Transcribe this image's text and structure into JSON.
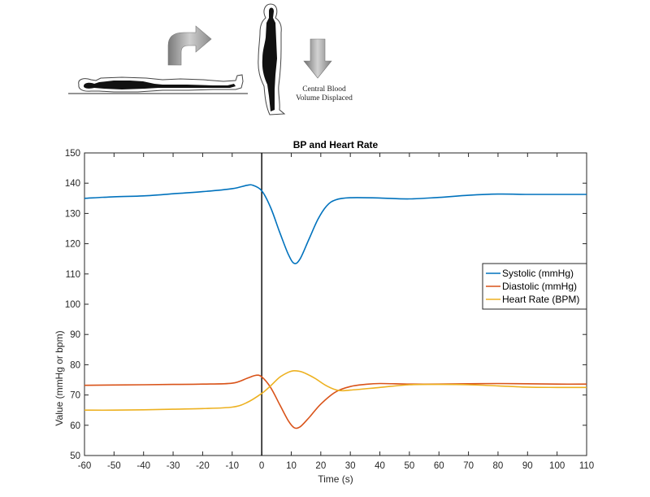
{
  "illustration": {
    "caption_line1": "Central Blood",
    "caption_line2": "Volume Displaced",
    "icons": [
      "person-lying-supine-icon",
      "curved-arrow-up-right-icon",
      "person-standing-icon",
      "arrow-down-icon"
    ]
  },
  "chart_data": {
    "type": "line",
    "title": "BP and Heart Rate",
    "xlabel": "Time (s)",
    "ylabel": "Value (mmHg or bpm)",
    "xlim": [
      -60,
      110
    ],
    "ylim": [
      50,
      150
    ],
    "xticks": [
      -60,
      -50,
      -40,
      -30,
      -20,
      -10,
      0,
      10,
      20,
      30,
      40,
      50,
      60,
      70,
      80,
      90,
      100,
      110
    ],
    "yticks": [
      50,
      60,
      70,
      80,
      90,
      100,
      110,
      120,
      130,
      140,
      150
    ],
    "grid": false,
    "legend_position": "right",
    "vertical_line_x": 0,
    "series": [
      {
        "name": "Systolic (mmHg)",
        "color": "#0072BD",
        "points": [
          [
            -60,
            135
          ],
          [
            -50,
            135.5
          ],
          [
            -40,
            135.8
          ],
          [
            -30,
            136.5
          ],
          [
            -20,
            137.2
          ],
          [
            -10,
            138.2
          ],
          [
            -5,
            139.3
          ],
          [
            -3,
            139.3
          ],
          [
            0,
            137.5
          ],
          [
            3,
            132
          ],
          [
            6,
            124
          ],
          [
            9,
            116.5
          ],
          [
            11,
            113.5
          ],
          [
            13,
            115
          ],
          [
            16,
            121.5
          ],
          [
            19,
            128
          ],
          [
            22,
            132.5
          ],
          [
            25,
            134.5
          ],
          [
            30,
            135.2
          ],
          [
            40,
            135.1
          ],
          [
            50,
            134.8
          ],
          [
            60,
            135.3
          ],
          [
            70,
            136
          ],
          [
            80,
            136.4
          ],
          [
            90,
            136.3
          ],
          [
            100,
            136.3
          ],
          [
            110,
            136.3
          ]
        ]
      },
      {
        "name": "Diastolic (mmHg)",
        "color": "#D95319",
        "points": [
          [
            -60,
            73.2
          ],
          [
            -50,
            73.3
          ],
          [
            -40,
            73.4
          ],
          [
            -30,
            73.5
          ],
          [
            -20,
            73.6
          ],
          [
            -10,
            73.9
          ],
          [
            -5,
            75.5
          ],
          [
            -2,
            76.5
          ],
          [
            0,
            76
          ],
          [
            3,
            72.5
          ],
          [
            6,
            67
          ],
          [
            9,
            61.5
          ],
          [
            11,
            59.2
          ],
          [
            13,
            59.5
          ],
          [
            16,
            62.5
          ],
          [
            20,
            67
          ],
          [
            25,
            71
          ],
          [
            30,
            72.8
          ],
          [
            35,
            73.5
          ],
          [
            40,
            73.8
          ],
          [
            50,
            73.6
          ],
          [
            60,
            73.6
          ],
          [
            70,
            73.7
          ],
          [
            80,
            73.8
          ],
          [
            90,
            73.7
          ],
          [
            100,
            73.6
          ],
          [
            110,
            73.6
          ]
        ]
      },
      {
        "name": "Heart Rate (BPM)",
        "color": "#EDB120",
        "points": [
          [
            -60,
            65
          ],
          [
            -50,
            65
          ],
          [
            -40,
            65.1
          ],
          [
            -30,
            65.3
          ],
          [
            -20,
            65.5
          ],
          [
            -10,
            66
          ],
          [
            -5,
            67.5
          ],
          [
            0,
            70.5
          ],
          [
            3,
            73
          ],
          [
            6,
            75.8
          ],
          [
            9,
            77.5
          ],
          [
            11,
            78
          ],
          [
            14,
            77.5
          ],
          [
            18,
            75.5
          ],
          [
            22,
            73
          ],
          [
            26,
            71.5
          ],
          [
            30,
            71.6
          ],
          [
            40,
            72.5
          ],
          [
            50,
            73.4
          ],
          [
            60,
            73.5
          ],
          [
            70,
            73.4
          ],
          [
            80,
            73
          ],
          [
            90,
            72.6
          ],
          [
            100,
            72.5
          ],
          [
            110,
            72.5
          ]
        ]
      }
    ]
  }
}
